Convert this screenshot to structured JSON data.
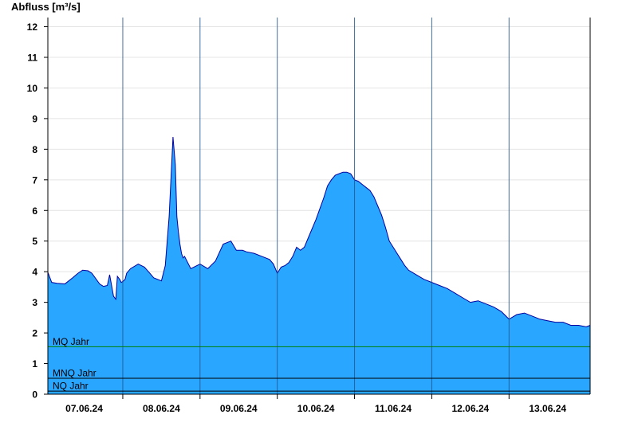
{
  "chart_data": {
    "type": "area",
    "title": "Abfluss [m³/s]",
    "ylabel": "Abfluss [m³/s]",
    "ylim": [
      0,
      12.3
    ],
    "yticks": [
      0,
      1,
      2,
      3,
      4,
      5,
      6,
      7,
      8,
      9,
      10,
      11,
      12
    ],
    "x_unit": "days from 07.06.24 00:00",
    "xlim": [
      -0.47,
      6.55
    ],
    "xtick_labels": [
      "07.06.24",
      "08.06.24",
      "09.06.24",
      "10.06.24",
      "11.06.24",
      "12.06.24",
      "13.06.24"
    ],
    "grid": true,
    "fill_color": "#29A6FF",
    "line_color": "#0000A0",
    "series": [
      {
        "name": "Abfluss",
        "x": [
          -0.47,
          -0.42,
          -0.35,
          -0.25,
          -0.15,
          -0.08,
          -0.02,
          0.05,
          0.1,
          0.2,
          0.25,
          0.3,
          0.33,
          0.38,
          0.41,
          0.43,
          0.46,
          0.48,
          0.5,
          0.53,
          0.55,
          0.6,
          0.7,
          0.78,
          0.85,
          0.9,
          1.0,
          1.05,
          1.1,
          1.15,
          1.18,
          1.2,
          1.22,
          1.24,
          1.26,
          1.28,
          1.3,
          1.32,
          1.35,
          1.38,
          1.42,
          1.5,
          1.6,
          1.7,
          1.8,
          1.9,
          1.97,
          2.05,
          2.1,
          2.2,
          2.3,
          2.4,
          2.45,
          2.5,
          2.55,
          2.6,
          2.65,
          2.7,
          2.75,
          2.8,
          2.85,
          2.9,
          3.0,
          3.1,
          3.15,
          3.2,
          3.25,
          3.3,
          3.35,
          3.4,
          3.45,
          3.5,
          3.55,
          3.6,
          3.65,
          3.7,
          3.75,
          3.8,
          3.85,
          3.9,
          3.95,
          4.0,
          4.05,
          4.1,
          4.15,
          4.2,
          4.3,
          4.4,
          4.5,
          4.6,
          4.7,
          4.8,
          4.9,
          5.0,
          5.1,
          5.2,
          5.3,
          5.4,
          5.5,
          5.6,
          5.7,
          5.8,
          5.9,
          6.0,
          6.1,
          6.2,
          6.3,
          6.4,
          6.5,
          6.55
        ],
        "y": [
          3.98,
          3.65,
          3.62,
          3.6,
          3.8,
          3.95,
          4.05,
          4.03,
          3.95,
          3.6,
          3.52,
          3.55,
          3.9,
          3.2,
          3.1,
          3.85,
          3.75,
          3.65,
          3.68,
          3.75,
          3.95,
          4.1,
          4.25,
          4.15,
          3.95,
          3.8,
          3.7,
          4.2,
          5.8,
          8.4,
          7.5,
          5.8,
          5.3,
          4.9,
          4.6,
          4.45,
          4.5,
          4.4,
          4.25,
          4.1,
          4.15,
          4.25,
          4.1,
          4.35,
          4.9,
          5.0,
          4.7,
          4.7,
          4.65,
          4.6,
          4.5,
          4.4,
          4.25,
          3.95,
          4.15,
          4.2,
          4.3,
          4.5,
          4.8,
          4.7,
          4.8,
          5.1,
          5.7,
          6.4,
          6.8,
          7.0,
          7.15,
          7.2,
          7.25,
          7.25,
          7.2,
          7.0,
          6.95,
          6.85,
          6.75,
          6.65,
          6.45,
          6.15,
          5.85,
          5.45,
          5.0,
          4.8,
          4.6,
          4.4,
          4.2,
          4.05,
          3.9,
          3.75,
          3.65,
          3.55,
          3.45,
          3.3,
          3.15,
          3.0,
          3.05,
          2.95,
          2.85,
          2.7,
          2.45,
          2.6,
          2.65,
          2.55,
          2.45,
          2.4,
          2.35,
          2.35,
          2.25,
          2.25,
          2.2,
          2.25
        ]
      }
    ],
    "reference_lines": [
      {
        "label": "MQ Jahr",
        "value": 1.55,
        "color": "#008000"
      },
      {
        "label": "MNQ Jahr",
        "value": 0.52,
        "color": "#000000"
      },
      {
        "label": "NQ Jahr",
        "value": 0.1,
        "color": "#000000"
      }
    ]
  }
}
